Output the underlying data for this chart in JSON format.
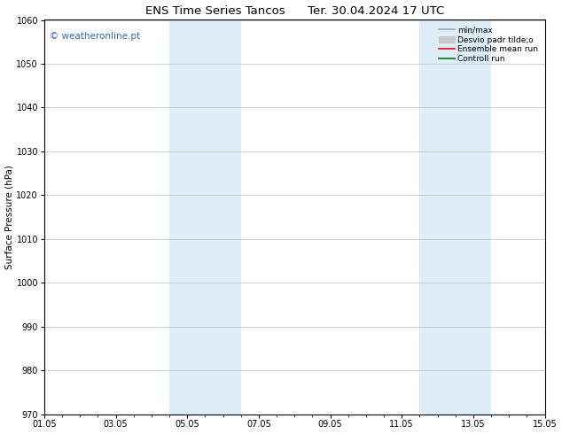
{
  "title": "ENS Time Series Tancos      Ter. 30.04.2024 17 UTC",
  "ylabel": "Surface Pressure (hPa)",
  "xlabel": "",
  "ylim": [
    970,
    1060
  ],
  "yticks": [
    970,
    980,
    990,
    1000,
    1010,
    1020,
    1030,
    1040,
    1050,
    1060
  ],
  "xlim": [
    0,
    14
  ],
  "xtick_labels": [
    "01.05",
    "03.05",
    "05.05",
    "07.05",
    "09.05",
    "11.05",
    "13.05",
    "15.05"
  ],
  "xtick_positions": [
    0,
    2,
    4,
    6,
    8,
    10,
    12,
    14
  ],
  "shaded_regions": [
    {
      "xmin": 3.5,
      "xmax": 5.5,
      "color": "#ddeef8"
    },
    {
      "xmin": 10.5,
      "xmax": 12.5,
      "color": "#ddeef8"
    }
  ],
  "background_color": "#ffffff",
  "watermark_text": "© weatheronline.pt",
  "watermark_color": "#3366cc",
  "legend_entries": [
    {
      "label": "min/max",
      "color": "#aaaaaa",
      "linestyle": "-"
    },
    {
      "label": "Desvio padr tilde;o",
      "color": "#cccccc",
      "linestyle": "-"
    },
    {
      "label": "Ensemble mean run",
      "color": "#ff0000",
      "linestyle": "-"
    },
    {
      "label": "Controll run",
      "color": "#007700",
      "linestyle": "-"
    }
  ],
  "grid_color": "#bbbbbb",
  "tick_color": "#000000",
  "spine_color": "#000000",
  "title_fontsize": 9.5,
  "label_fontsize": 7.5,
  "tick_fontsize": 7,
  "legend_fontsize": 6.5,
  "watermark_fontsize": 7.5,
  "minor_tick_interval": 0.5
}
